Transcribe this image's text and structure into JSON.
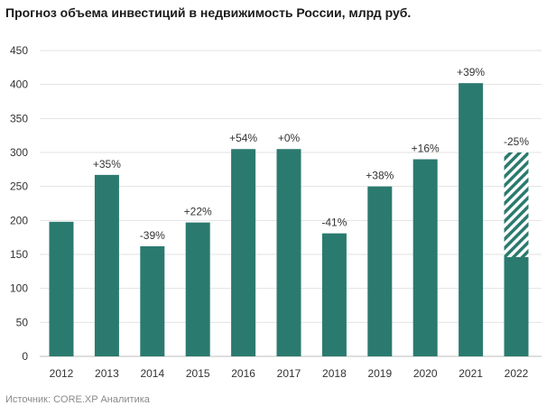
{
  "title": "Прогноз объема инвестиций в недвижимость России, млрд руб.",
  "source": "Источник: CORE.XP Аналитика",
  "colors": {
    "bar": "#2b7a6f",
    "grid": "#e2e2e2",
    "axis": "#bdbdbd"
  },
  "chart_data": {
    "type": "bar",
    "title": "Прогноз объема инвестиций в недвижимость России, млрд руб.",
    "xlabel": "",
    "ylabel": "",
    "ylim": [
      0,
      450
    ],
    "yticks": [
      0,
      50,
      100,
      150,
      200,
      250,
      300,
      350,
      400,
      450
    ],
    "grid": true,
    "categories": [
      "2012",
      "2013",
      "2014",
      "2015",
      "2016",
      "2017",
      "2018",
      "2019",
      "2020",
      "2021",
      "2022"
    ],
    "values": [
      198,
      267,
      162,
      197,
      305,
      305,
      181,
      250,
      290,
      402,
      300
    ],
    "forecast_low": [
      null,
      null,
      null,
      null,
      null,
      null,
      null,
      null,
      null,
      null,
      146
    ],
    "labels": [
      "",
      "+35%",
      "-39%",
      "+22%",
      "+54%",
      "+0%",
      "-41%",
      "+38%",
      "+16%",
      "+39%",
      "-25%"
    ]
  }
}
